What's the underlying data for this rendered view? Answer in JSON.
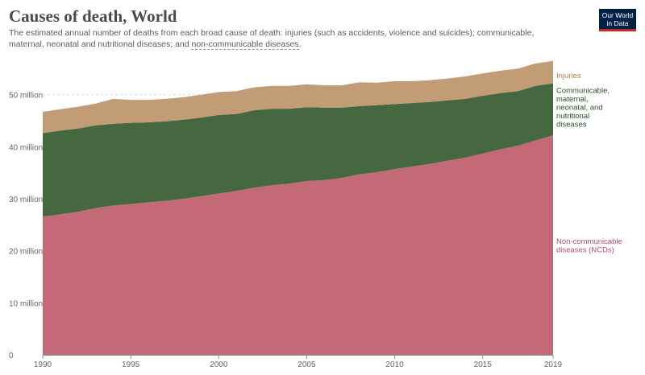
{
  "header": {
    "title": "Causes of death, World",
    "subtitle_main": "The estimated annual number of deaths from each broad cause of death: injuries (such as accidents, violence and suicides); communicable, maternal, neonatal and nutritional diseases; and ",
    "subtitle_link": "non-communicable diseases",
    "subtitle_end": ".",
    "logo_line1": "Our World",
    "logo_line2": "in Data"
  },
  "colors": {
    "ncd": "#c46a77",
    "communicable": "#456840",
    "injuries": "#c29c74",
    "ncd_label": "#b84c5f",
    "communicable_label": "#2b4d28",
    "injuries_label": "#b07e46"
  },
  "series_labels": {
    "injuries": [
      "Injuries"
    ],
    "communicable": [
      "Communicable,",
      "maternal,",
      "neonatal, and",
      "nutritional",
      "diseases"
    ],
    "ncd": [
      "Non-communicable",
      "diseases (NCDs)"
    ]
  },
  "chart_data": {
    "type": "area",
    "stacked": true,
    "title": "Causes of death, World",
    "x": [
      1990,
      1991,
      1992,
      1993,
      1994,
      1995,
      1996,
      1997,
      1998,
      1999,
      2000,
      2001,
      2002,
      2003,
      2004,
      2005,
      2006,
      2007,
      2008,
      2009,
      2010,
      2011,
      2012,
      2013,
      2014,
      2015,
      2016,
      2017,
      2018,
      2019
    ],
    "series": [
      {
        "name": "Non-communicable diseases (NCDs)",
        "key": "ncd",
        "values": [
          26.6,
          27.0,
          27.5,
          28.2,
          28.7,
          29.0,
          29.3,
          29.6,
          30.0,
          30.5,
          31.0,
          31.5,
          32.1,
          32.6,
          32.9,
          33.4,
          33.6,
          34.0,
          34.7,
          35.1,
          35.7,
          36.2,
          36.7,
          37.3,
          37.9,
          38.7,
          39.5,
          40.2,
          41.2,
          42.2
        ]
      },
      {
        "name": "Communicable, maternal, neonatal, and nutritional diseases",
        "key": "communicable",
        "values": [
          16.0,
          16.1,
          16.0,
          15.9,
          15.7,
          15.6,
          15.4,
          15.3,
          15.2,
          15.1,
          15.1,
          14.8,
          14.9,
          14.7,
          14.4,
          14.2,
          13.9,
          13.5,
          13.1,
          12.9,
          12.5,
          12.2,
          11.9,
          11.6,
          11.3,
          11.1,
          10.8,
          10.5,
          10.5,
          10.0
        ]
      },
      {
        "name": "Injuries",
        "key": "injuries",
        "values": [
          4.1,
          4.1,
          4.2,
          4.2,
          4.8,
          4.4,
          4.3,
          4.3,
          4.3,
          4.4,
          4.4,
          4.4,
          4.4,
          4.4,
          4.4,
          4.4,
          4.3,
          4.3,
          4.6,
          4.3,
          4.4,
          4.2,
          4.2,
          4.2,
          4.3,
          4.3,
          4.3,
          4.3,
          4.3,
          4.3
        ]
      }
    ],
    "ylim": [
      0,
      56.6
    ],
    "yticks": [
      0,
      10,
      20,
      30,
      40,
      50
    ],
    "ytick_labels": [
      "0",
      "10 million",
      "20 million",
      "30 million",
      "40 million",
      "50 million"
    ],
    "xticks": [
      1990,
      1995,
      2000,
      2005,
      2010,
      2015,
      2019
    ],
    "xtick_labels": [
      "1990",
      "1995",
      "2000",
      "2005",
      "2010",
      "2015",
      "2019"
    ],
    "grid": true,
    "legend": "right inline labels"
  }
}
